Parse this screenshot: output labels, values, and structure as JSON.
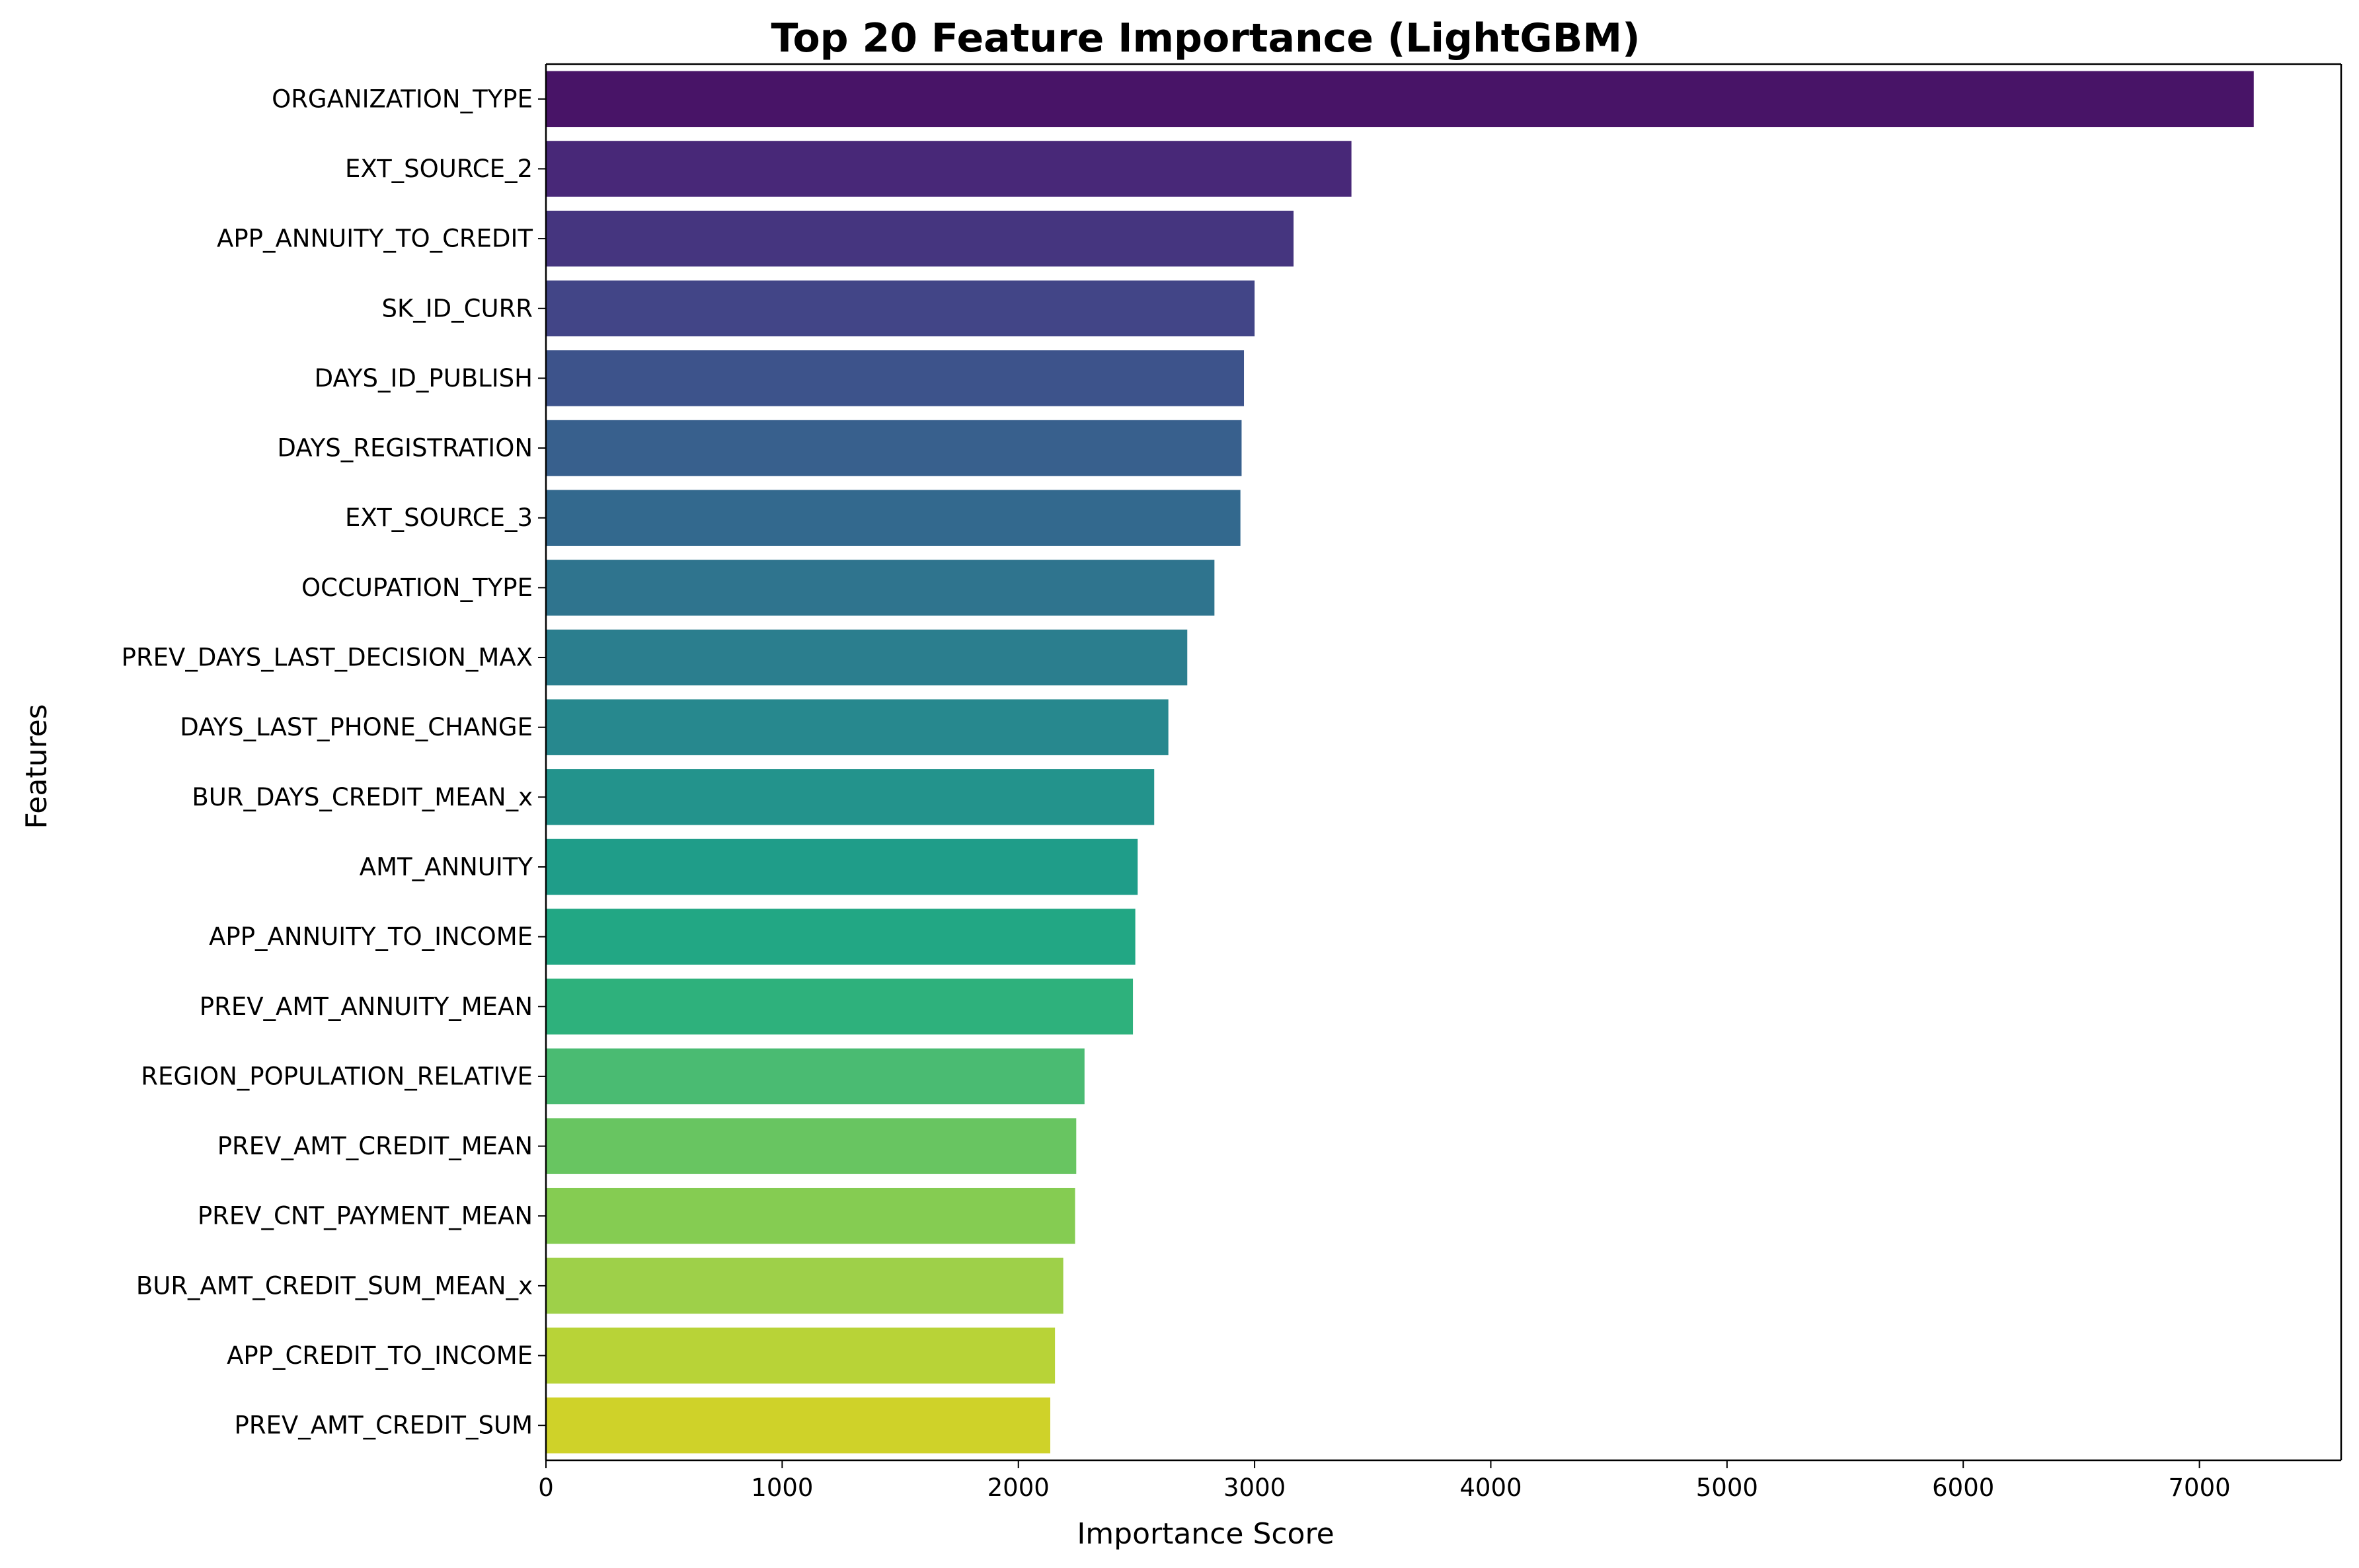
{
  "chart_data": {
    "type": "bar",
    "orientation": "horizontal",
    "title": "Top 20 Feature Importance (LightGBM)",
    "xlabel": "Importance Score",
    "ylabel": "Features",
    "xlim": [
      0,
      7600
    ],
    "xticks": [
      0,
      1000,
      2000,
      3000,
      4000,
      5000,
      6000,
      7000
    ],
    "grid": false,
    "legend": "none",
    "colormap": "viridis",
    "categories": [
      "ORGANIZATION_TYPE",
      "EXT_SOURCE_2",
      "APP_ANNUITY_TO_CREDIT",
      "SK_ID_CURR",
      "DAYS_ID_PUBLISH",
      "DAYS_REGISTRATION",
      "EXT_SOURCE_3",
      "OCCUPATION_TYPE",
      "PREV_DAYS_LAST_DECISION_MAX",
      "DAYS_LAST_PHONE_CHANGE",
      "BUR_DAYS_CREDIT_MEAN_x",
      "AMT_ANNUITY",
      "APP_ANNUITY_TO_INCOME",
      "PREV_AMT_ANNUITY_MEAN",
      "REGION_POPULATION_RELATIVE",
      "PREV_AMT_CREDIT_MEAN",
      "PREV_CNT_PAYMENT_MEAN",
      "BUR_AMT_CREDIT_SUM_MEAN_x",
      "APP_CREDIT_TO_INCOME",
      "PREV_AMT_CREDIT_SUM"
    ],
    "values": [
      7230,
      3410,
      3165,
      3000,
      2955,
      2945,
      2940,
      2830,
      2715,
      2635,
      2575,
      2505,
      2495,
      2485,
      2280,
      2245,
      2240,
      2190,
      2155,
      2135
    ],
    "colors": [
      "#481467",
      "#482878",
      "#45357f",
      "#424587",
      "#3d538b",
      "#38608d",
      "#33698e",
      "#2f748e",
      "#2b7e8e",
      "#27888e",
      "#23938c",
      "#1f9d89",
      "#22a784",
      "#2eb17c",
      "#4abb72",
      "#68c561",
      "#85cc52",
      "#9ed049",
      "#b8d337",
      "#cfd229"
    ]
  }
}
